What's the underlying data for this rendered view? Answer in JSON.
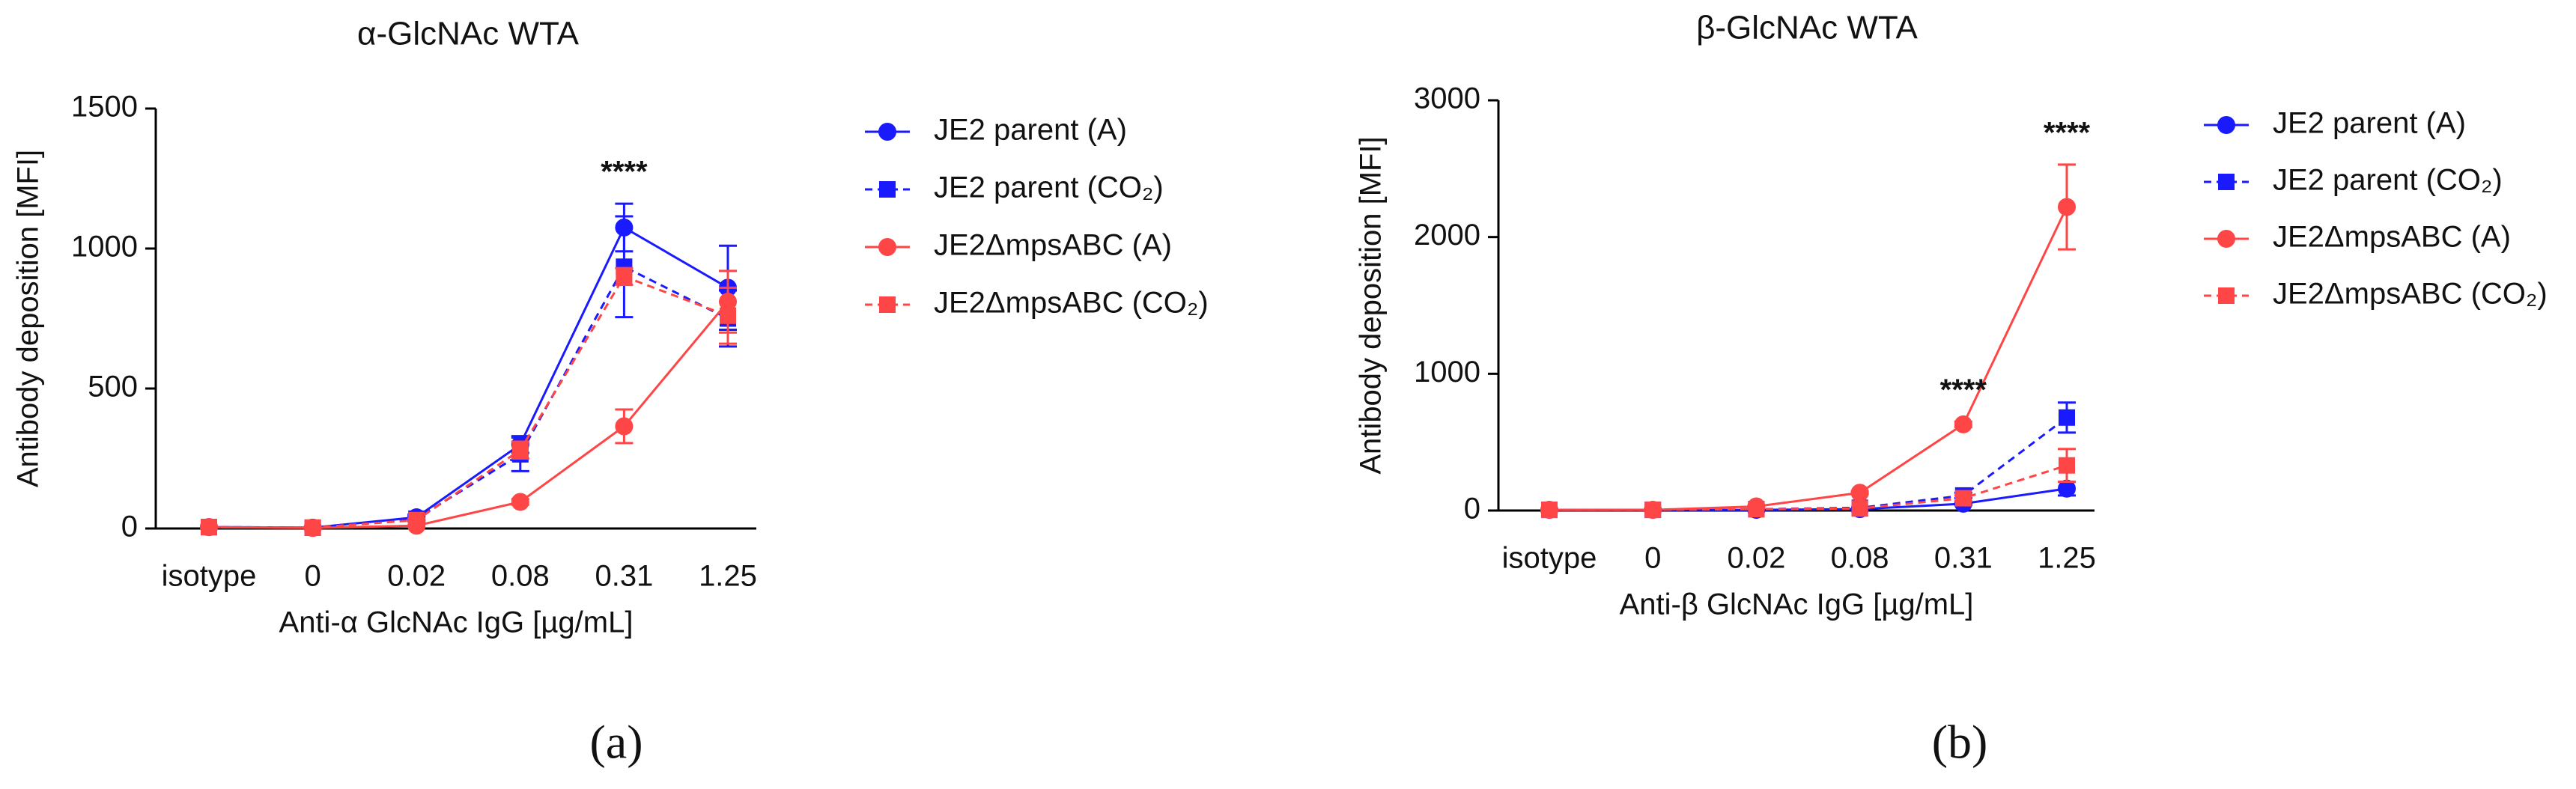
{
  "chart_data": [
    {
      "type": "line",
      "title": "α-GlcNAc WTA",
      "panel_label": "(a)",
      "x_label": "Anti-α GlcNAc IgG [µg/mL]",
      "y_label": "Antibody deposition [MFI]",
      "categories": [
        "isotype",
        "0",
        "0.02",
        "0.08",
        "0.31",
        "1.25"
      ],
      "ylim": [
        0,
        1500
      ],
      "yticks": [
        0,
        500,
        1000,
        1500
      ],
      "series": [
        {
          "name": "JE2 parent (A)",
          "color": "#1a1aff",
          "marker": "circle",
          "dashed": false,
          "values": [
            5,
            3,
            40,
            300,
            1075,
            860
          ],
          "errors": [
            0,
            0,
            10,
            30,
            85,
            150
          ]
        },
        {
          "name": "JE2 parent (CO₂)",
          "color": "#1a1aff",
          "marker": "square",
          "dashed": true,
          "values": [
            5,
            3,
            35,
            265,
            935,
            750
          ],
          "errors": [
            0,
            0,
            10,
            60,
            180,
            100
          ]
        },
        {
          "name": "JE2ΔmpsABC (A)",
          "color": "#ff4646",
          "marker": "circle",
          "dashed": false,
          "values": [
            5,
            2,
            10,
            95,
            365,
            810
          ],
          "errors": [
            0,
            0,
            0,
            10,
            60,
            110
          ]
        },
        {
          "name": "JE2ΔmpsABC (CO₂)",
          "color": "#ff4646",
          "marker": "square",
          "dashed": true,
          "values": [
            5,
            3,
            30,
            280,
            900,
            760
          ],
          "errors": [
            0,
            0,
            5,
            30,
            30,
            100
          ]
        }
      ],
      "annotations": [
        {
          "text": "****",
          "x": "0.31"
        }
      ]
    },
    {
      "type": "line",
      "title": "β-GlcNAc WTA",
      "panel_label": "(b)",
      "x_label": "Anti-β GlcNAc IgG [µg/mL]",
      "y_label": "Antibody deposition [MFI]",
      "categories": [
        "isotype",
        "0",
        "0.02",
        "0.08",
        "0.31",
        "1.25"
      ],
      "ylim": [
        0,
        3000
      ],
      "yticks": [
        0,
        1000,
        2000,
        3000
      ],
      "series": [
        {
          "name": "JE2 parent (A)",
          "color": "#1a1aff",
          "marker": "circle",
          "dashed": false,
          "values": [
            5,
            5,
            5,
            10,
            50,
            160
          ],
          "errors": [
            0,
            0,
            0,
            0,
            10,
            50
          ]
        },
        {
          "name": "JE2 parent (CO₂)",
          "color": "#1a1aff",
          "marker": "square",
          "dashed": true,
          "values": [
            5,
            5,
            10,
            20,
            110,
            680
          ],
          "errors": [
            0,
            0,
            0,
            0,
            20,
            110
          ]
        },
        {
          "name": "JE2ΔmpsABC (A)",
          "color": "#ff4646",
          "marker": "circle",
          "dashed": false,
          "values": [
            5,
            5,
            30,
            130,
            630,
            2220
          ],
          "errors": [
            0,
            0,
            5,
            10,
            20,
            310
          ]
        },
        {
          "name": "JE2ΔmpsABC (CO₂)",
          "color": "#ff4646",
          "marker": "square",
          "dashed": true,
          "values": [
            5,
            5,
            10,
            15,
            90,
            330
          ],
          "errors": [
            0,
            0,
            0,
            0,
            20,
            120
          ]
        }
      ],
      "annotations": [
        {
          "text": "****",
          "x": "0.31"
        },
        {
          "text": "****",
          "x": "1.25"
        }
      ]
    }
  ]
}
